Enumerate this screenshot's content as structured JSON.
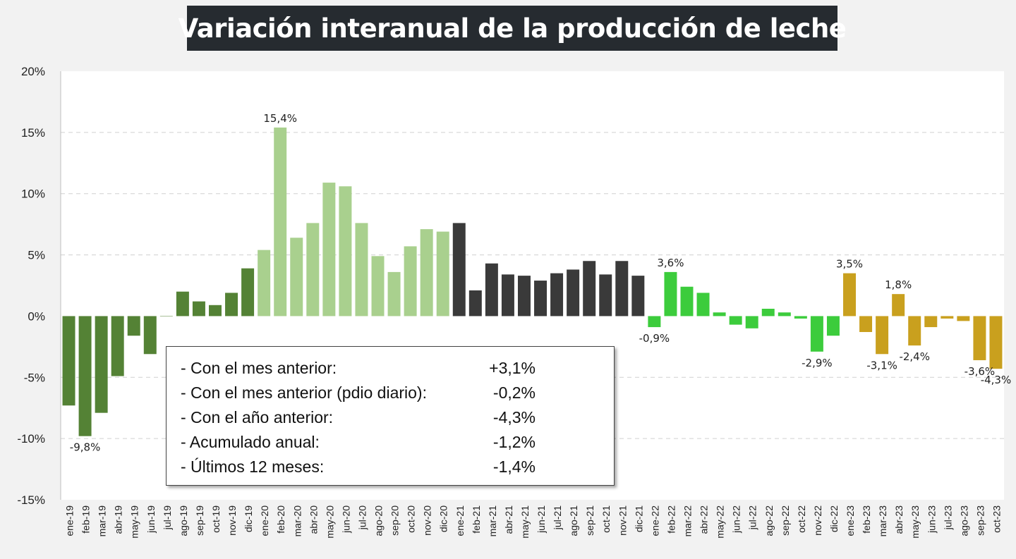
{
  "title": "Variación interanual de la producción de leche",
  "colors": {
    "y2019": "#548235",
    "y2020": "#a9d08e",
    "y2021": "#3a3a3a",
    "y2022": "#3ccc3c",
    "y2023": "#c9a01e",
    "grid": "#d0d0d0",
    "label": "#222222"
  },
  "chart_data": {
    "type": "bar",
    "title": "Variación interanual de la producción de leche",
    "xlabel": "",
    "ylabel": "",
    "ylim": [
      -15,
      20
    ],
    "yticks": [
      20,
      15,
      10,
      5,
      0,
      -5,
      -10,
      -15
    ],
    "ytick_labels": [
      "20%",
      "15%",
      "10%",
      "5%",
      "0%",
      "-5%",
      "-10%",
      "-15%"
    ],
    "grid": true,
    "categories": [
      "ene-19",
      "feb-19",
      "mar-19",
      "abr-19",
      "may-19",
      "jun-19",
      "jul-19",
      "ago-19",
      "sep-19",
      "oct-19",
      "nov-19",
      "dic-19",
      "ene-20",
      "feb-20",
      "mar-20",
      "abr-20",
      "may-20",
      "jun-20",
      "jul-20",
      "ago-20",
      "sep-20",
      "oct-20",
      "nov-20",
      "dic-20",
      "ene-21",
      "feb-21",
      "mar-21",
      "abr-21",
      "may-21",
      "jun-21",
      "jul-21",
      "ago-21",
      "sep-21",
      "oct-21",
      "nov-21",
      "dic-21",
      "ene-22",
      "feb-22",
      "mar-22",
      "abr-22",
      "may-22",
      "jun-22",
      "jul-22",
      "ago-22",
      "sep-22",
      "oct-22",
      "nov-22",
      "dic-22",
      "ene-23",
      "feb-23",
      "mar-23",
      "abr-23",
      "may-23",
      "jun-23",
      "jul-23",
      "ago-23",
      "sep-23",
      "oct-23"
    ],
    "values": [
      -7.3,
      -9.8,
      -7.9,
      -4.9,
      -1.6,
      -3.1,
      0,
      2.0,
      1.2,
      0.9,
      1.9,
      3.9,
      5.4,
      15.4,
      6.4,
      7.6,
      10.9,
      10.6,
      7.6,
      4.9,
      3.6,
      5.7,
      7.1,
      6.9,
      7.6,
      2.1,
      4.3,
      3.4,
      3.3,
      2.9,
      3.5,
      3.8,
      4.5,
      3.4,
      4.5,
      3.3,
      -0.9,
      3.6,
      2.4,
      1.9,
      0.3,
      -0.7,
      -1.0,
      0.6,
      0.3,
      -0.2,
      -2.9,
      -1.6,
      3.5,
      -1.3,
      -3.1,
      1.8,
      -2.4,
      -0.9,
      -0.2,
      -0.4,
      -3.6,
      -4.3
    ],
    "year_groups": [
      "y2019",
      "y2019",
      "y2019",
      "y2019",
      "y2019",
      "y2019",
      "y2019",
      "y2019",
      "y2019",
      "y2019",
      "y2019",
      "y2019",
      "y2020",
      "y2020",
      "y2020",
      "y2020",
      "y2020",
      "y2020",
      "y2020",
      "y2020",
      "y2020",
      "y2020",
      "y2020",
      "y2020",
      "y2021",
      "y2021",
      "y2021",
      "y2021",
      "y2021",
      "y2021",
      "y2021",
      "y2021",
      "y2021",
      "y2021",
      "y2021",
      "y2021",
      "y2022",
      "y2022",
      "y2022",
      "y2022",
      "y2022",
      "y2022",
      "y2022",
      "y2022",
      "y2022",
      "y2022",
      "y2022",
      "y2022",
      "y2023",
      "y2023",
      "y2023",
      "y2023",
      "y2023",
      "y2023",
      "y2023",
      "y2023",
      "y2023",
      "y2023"
    ],
    "data_labels": [
      {
        "index": 1,
        "text": "-9,8%"
      },
      {
        "index": 13,
        "text": "15,4%"
      },
      {
        "index": 36,
        "text": "-0,9%"
      },
      {
        "index": 37,
        "text": "3,6%"
      },
      {
        "index": 46,
        "text": "-2,9%"
      },
      {
        "index": 48,
        "text": "3,5%"
      },
      {
        "index": 50,
        "text": "-3,1%"
      },
      {
        "index": 51,
        "text": "1,8%"
      },
      {
        "index": 52,
        "text": "-2,4%"
      },
      {
        "index": 56,
        "text": "-3,6%"
      },
      {
        "index": 57,
        "text": "-4,3%"
      }
    ]
  },
  "summary": {
    "rows": [
      {
        "label": "- Con el mes anterior:",
        "value": "+3,1%"
      },
      {
        "label": "- Con el mes anterior (pdio diario):",
        "value": "-0,2%"
      },
      {
        "label": "- Con el año anterior:",
        "value": "-4,3%"
      },
      {
        "label": "- Acumulado anual:",
        "value": "-1,2%"
      },
      {
        "label": "- Últimos 12 meses:",
        "value": "-1,4%"
      }
    ]
  }
}
